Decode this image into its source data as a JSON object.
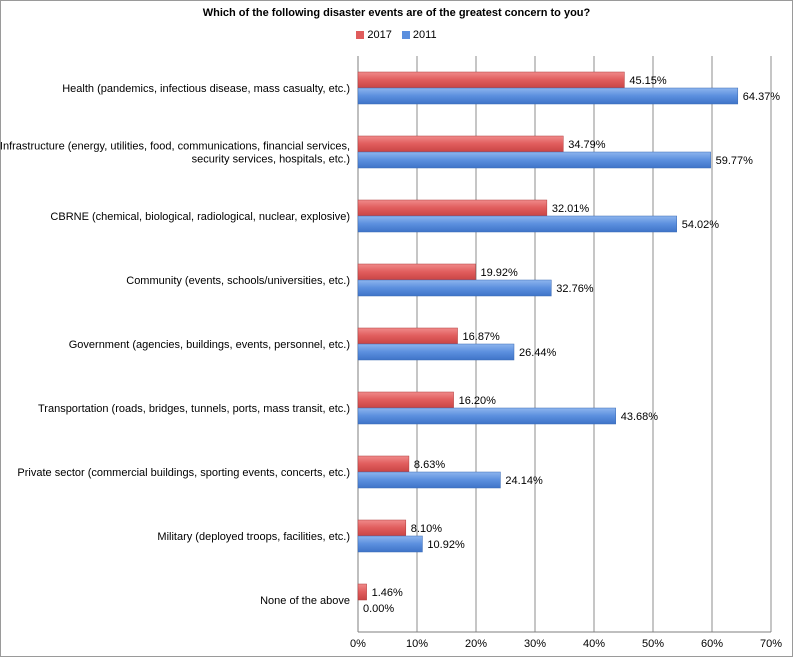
{
  "chart_data": {
    "type": "bar",
    "orientation": "horizontal",
    "title": "Which of the following disaster events are of the greatest concern to you?",
    "xlabel": "",
    "ylabel": "",
    "xlim": [
      0,
      70
    ],
    "x_ticks": [
      "0%",
      "10%",
      "20%",
      "30%",
      "40%",
      "50%",
      "60%",
      "70%"
    ],
    "grid": "vertical",
    "legend_position": "top-center",
    "categories": [
      [
        "Health (pandemics, infectious disease, mass casualty, etc.)"
      ],
      [
        "Infrastructure (energy, utilities, food, communications, financial services,",
        "security services, hospitals, etc.)"
      ],
      [
        "CBRNE (chemical, biological, radiological, nuclear, explosive)"
      ],
      [
        "Community (events, schools/universities, etc.)"
      ],
      [
        "Government (agencies, buildings, events, personnel, etc.)"
      ],
      [
        "Transportation (roads, bridges, tunnels, ports, mass transit, etc.)"
      ],
      [
        "Private sector (commercial buildings, sporting events, concerts, etc.)"
      ],
      [
        "Military (deployed troops, facilities, etc.)"
      ],
      [
        "None of the above"
      ]
    ],
    "series": [
      {
        "name": "2017",
        "color": "#e05c5c",
        "values": [
          45.15,
          34.79,
          32.01,
          19.92,
          16.87,
          16.2,
          8.63,
          8.1,
          1.46
        ],
        "labels": [
          "45.15%",
          "34.79%",
          "32.01%",
          "19.92%",
          "16.87%",
          "16.20%",
          "8.63%",
          "8.10%",
          "1.46%"
        ]
      },
      {
        "name": "2011",
        "color": "#5b8fde",
        "values": [
          64.37,
          59.77,
          54.02,
          32.76,
          26.44,
          43.68,
          24.14,
          10.92,
          0.0
        ],
        "labels": [
          "64.37%",
          "59.77%",
          "54.02%",
          "32.76%",
          "26.44%",
          "43.68%",
          "24.14%",
          "10.92%",
          "0.00%"
        ]
      }
    ]
  }
}
